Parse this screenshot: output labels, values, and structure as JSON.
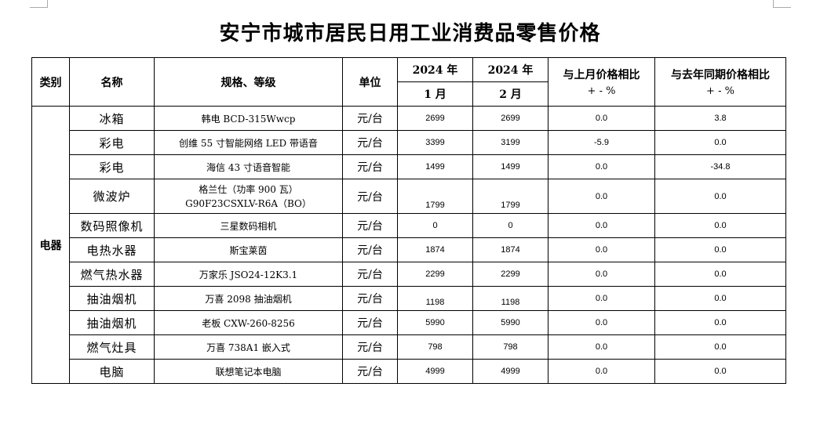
{
  "title": "安宁市城市居民日用工业消费品零售价格",
  "headers": {
    "category": "类别",
    "name": "名称",
    "spec": "规格、等级",
    "unit": "单位",
    "year1": "2024 年",
    "year2": "2024 年",
    "month1": "1 月",
    "month2": "2 月",
    "mom_line1": "与上月价格相比",
    "mom_line2": "+ - %",
    "yoy_line1": "与去年同期价格相比",
    "yoy_line2": "+ - %"
  },
  "category": "电器",
  "rows": [
    {
      "name": "冰箱",
      "spec": "韩电 BCD-315Wwcp",
      "spec2": "",
      "unit": "元/台",
      "jan": "2699",
      "feb": "2699",
      "mom": "0.0",
      "yoy": "3.8"
    },
    {
      "name": "彩电",
      "spec": "创维 55 寸智能网络 LED 带语音",
      "spec2": "",
      "unit": "元/台",
      "jan": "3399",
      "feb": "3199",
      "mom": "-5.9",
      "yoy": "0.0"
    },
    {
      "name": "彩电",
      "spec": "海信 43 寸语音智能",
      "spec2": "",
      "unit": "元/台",
      "jan": "1499",
      "feb": "1499",
      "mom": "0.0",
      "yoy": "-34.8"
    },
    {
      "name": "微波炉",
      "spec": "格兰仕（功率 900 瓦）",
      "spec2": "G90F23CSXLV-R6A（BO）",
      "unit": "元/台",
      "jan": "1799",
      "feb": "1799",
      "mom": "0.0",
      "yoy": "0.0"
    },
    {
      "name": "数码照像机",
      "spec": "三星数码相机",
      "spec2": "",
      "unit": "元/台",
      "jan": "0",
      "feb": "0",
      "mom": "0.0",
      "yoy": "0.0"
    },
    {
      "name": "电热水器",
      "spec": "斯宝莱茵",
      "spec2": "",
      "unit": "元/台",
      "jan": "1874",
      "feb": "1874",
      "mom": "0.0",
      "yoy": "0.0"
    },
    {
      "name": "燃气热水器",
      "spec": "万家乐 JSO24-12K3.1",
      "spec2": "",
      "unit": "元/台",
      "jan": "2299",
      "feb": "2299",
      "mom": "0.0",
      "yoy": "0.0"
    },
    {
      "name": "抽油烟机",
      "spec": "万喜 2098 抽油烟机",
      "spec2": "",
      "unit": "元/台",
      "jan": "1198",
      "feb": "1198",
      "mom": "0.0",
      "yoy": "0.0"
    },
    {
      "name": "抽油烟机",
      "spec": "老板 CXW-260-8256",
      "spec2": "",
      "unit": "元/台",
      "jan": "5990",
      "feb": "5990",
      "mom": "0.0",
      "yoy": "0.0"
    },
    {
      "name": "燃气灶具",
      "spec": "万喜 738A1 嵌入式",
      "spec2": "",
      "unit": "元/台",
      "jan": "798",
      "feb": "798",
      "mom": "0.0",
      "yoy": "0.0"
    },
    {
      "name": "电脑",
      "spec": "联想笔记本电脑",
      "spec2": "",
      "unit": "元/台",
      "jan": "4999",
      "feb": "4999",
      "mom": "0.0",
      "yoy": "0.0"
    }
  ]
}
